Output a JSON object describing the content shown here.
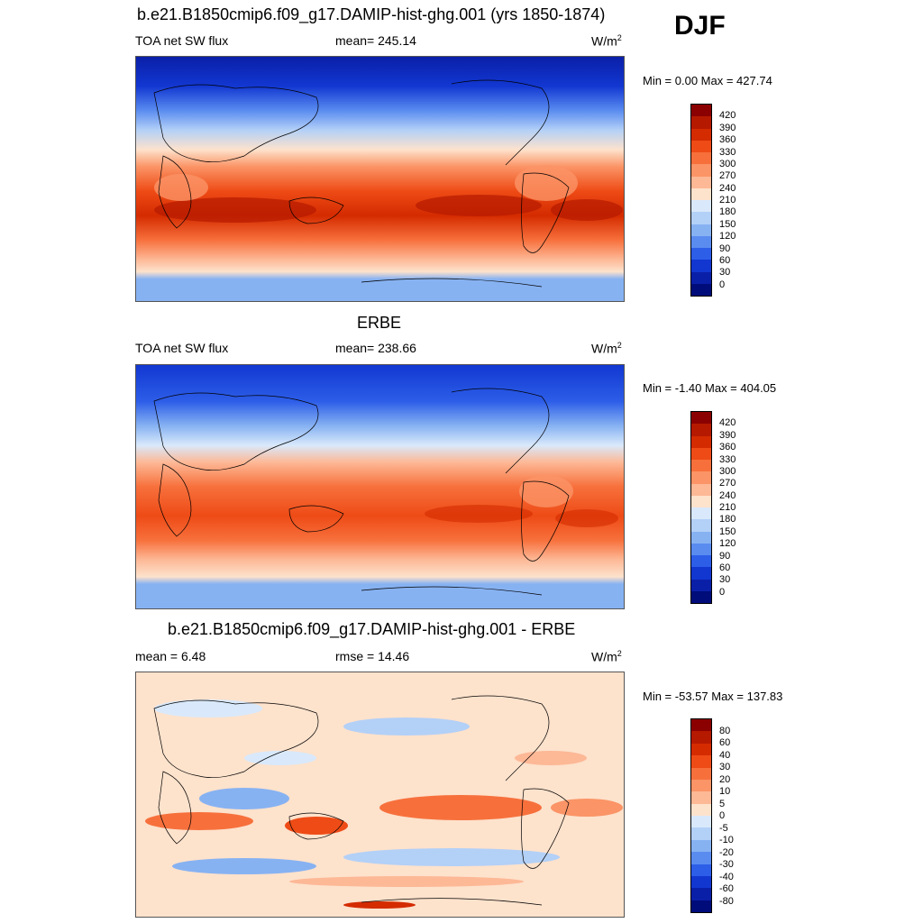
{
  "season": "DJF",
  "panels": [
    {
      "title": "b.e21.B1850cmip6.f09_g17.DAMIP-hist-ghg.001 (yrs 1850-1874)",
      "left_label": "TOA net SW flux",
      "center_label": "mean= 245.14",
      "units": "W/m",
      "units_sup": "2",
      "minmax": "Min =   0.00 Max = 427.74"
    },
    {
      "title": "ERBE",
      "left_label": "TOA net SW flux",
      "center_label": "mean= 238.66",
      "units": "W/m",
      "units_sup": "2",
      "minmax": "Min =  -1.40 Max = 404.05"
    },
    {
      "title": "b.e21.B1850cmip6.f09_g17.DAMIP-hist-ghg.001 - ERBE",
      "left_label": "mean =   6.48",
      "center_label": "rmse =  14.46",
      "units": "W/m",
      "units_sup": "2",
      "minmax": "Min = -53.57 Max = 137.83"
    }
  ],
  "colorbars": [
    {
      "labels": [
        "420",
        "390",
        "360",
        "330",
        "300",
        "270",
        "240",
        "210",
        "180",
        "150",
        "120",
        "90",
        "60",
        "30",
        "0"
      ],
      "colors": [
        "#8b0000",
        "#b51a00",
        "#d42b00",
        "#ee4b16",
        "#f7703c",
        "#fb9466",
        "#fdb896",
        "#fde2cc",
        "#d9e9fb",
        "#b3d0f7",
        "#87b2f2",
        "#5a8cf0",
        "#2d5ee8",
        "#1237d1",
        "#0a1fa8",
        "#000c7a"
      ]
    },
    {
      "labels": [
        "420",
        "390",
        "360",
        "330",
        "300",
        "270",
        "240",
        "210",
        "180",
        "150",
        "120",
        "90",
        "60",
        "30",
        "0"
      ],
      "colors": [
        "#8b0000",
        "#b51a00",
        "#d42b00",
        "#ee4b16",
        "#f7703c",
        "#fb9466",
        "#fdb896",
        "#fde2cc",
        "#d9e9fb",
        "#b3d0f7",
        "#87b2f2",
        "#5a8cf0",
        "#2d5ee8",
        "#1237d1",
        "#0a1fa8",
        "#000c7a"
      ]
    },
    {
      "labels": [
        "80",
        "60",
        "40",
        "30",
        "20",
        "10",
        "5",
        "0",
        "-5",
        "-10",
        "-20",
        "-30",
        "-40",
        "-60",
        "-80"
      ],
      "colors": [
        "#8b0000",
        "#b51a00",
        "#d42b00",
        "#ee4b16",
        "#f7703c",
        "#fb9466",
        "#fdb896",
        "#fde2cc",
        "#d9e9fb",
        "#b3d0f7",
        "#87b2f2",
        "#5a8cf0",
        "#2d5ee8",
        "#1237d1",
        "#0a1fa8",
        "#000c7a"
      ]
    }
  ],
  "chart_data": [
    {
      "type": "heatmap",
      "title": "b.e21.B1850cmip6.f09_g17.DAMIP-hist-ghg.001 (yrs 1850-1874)",
      "variable": "TOA net SW flux",
      "units": "W/m2",
      "mean": 245.14,
      "min": 0.0,
      "max": 427.74,
      "contour_levels": [
        0,
        30,
        60,
        90,
        120,
        150,
        180,
        210,
        240,
        270,
        300,
        330,
        360,
        390,
        420
      ],
      "season": "DJF"
    },
    {
      "type": "heatmap",
      "title": "ERBE",
      "variable": "TOA net SW flux",
      "units": "W/m2",
      "mean": 238.66,
      "min": -1.4,
      "max": 404.05,
      "contour_levels": [
        0,
        30,
        60,
        90,
        120,
        150,
        180,
        210,
        240,
        270,
        300,
        330,
        360,
        390,
        420
      ],
      "season": "DJF"
    },
    {
      "type": "heatmap",
      "title": "b.e21.B1850cmip6.f09_g17.DAMIP-hist-ghg.001 - ERBE",
      "units": "W/m2",
      "mean": 6.48,
      "rmse": 14.46,
      "min": -53.57,
      "max": 137.83,
      "contour_levels": [
        -80,
        -60,
        -40,
        -30,
        -20,
        -10,
        -5,
        0,
        5,
        10,
        20,
        30,
        40,
        60,
        80
      ],
      "season": "DJF"
    }
  ]
}
